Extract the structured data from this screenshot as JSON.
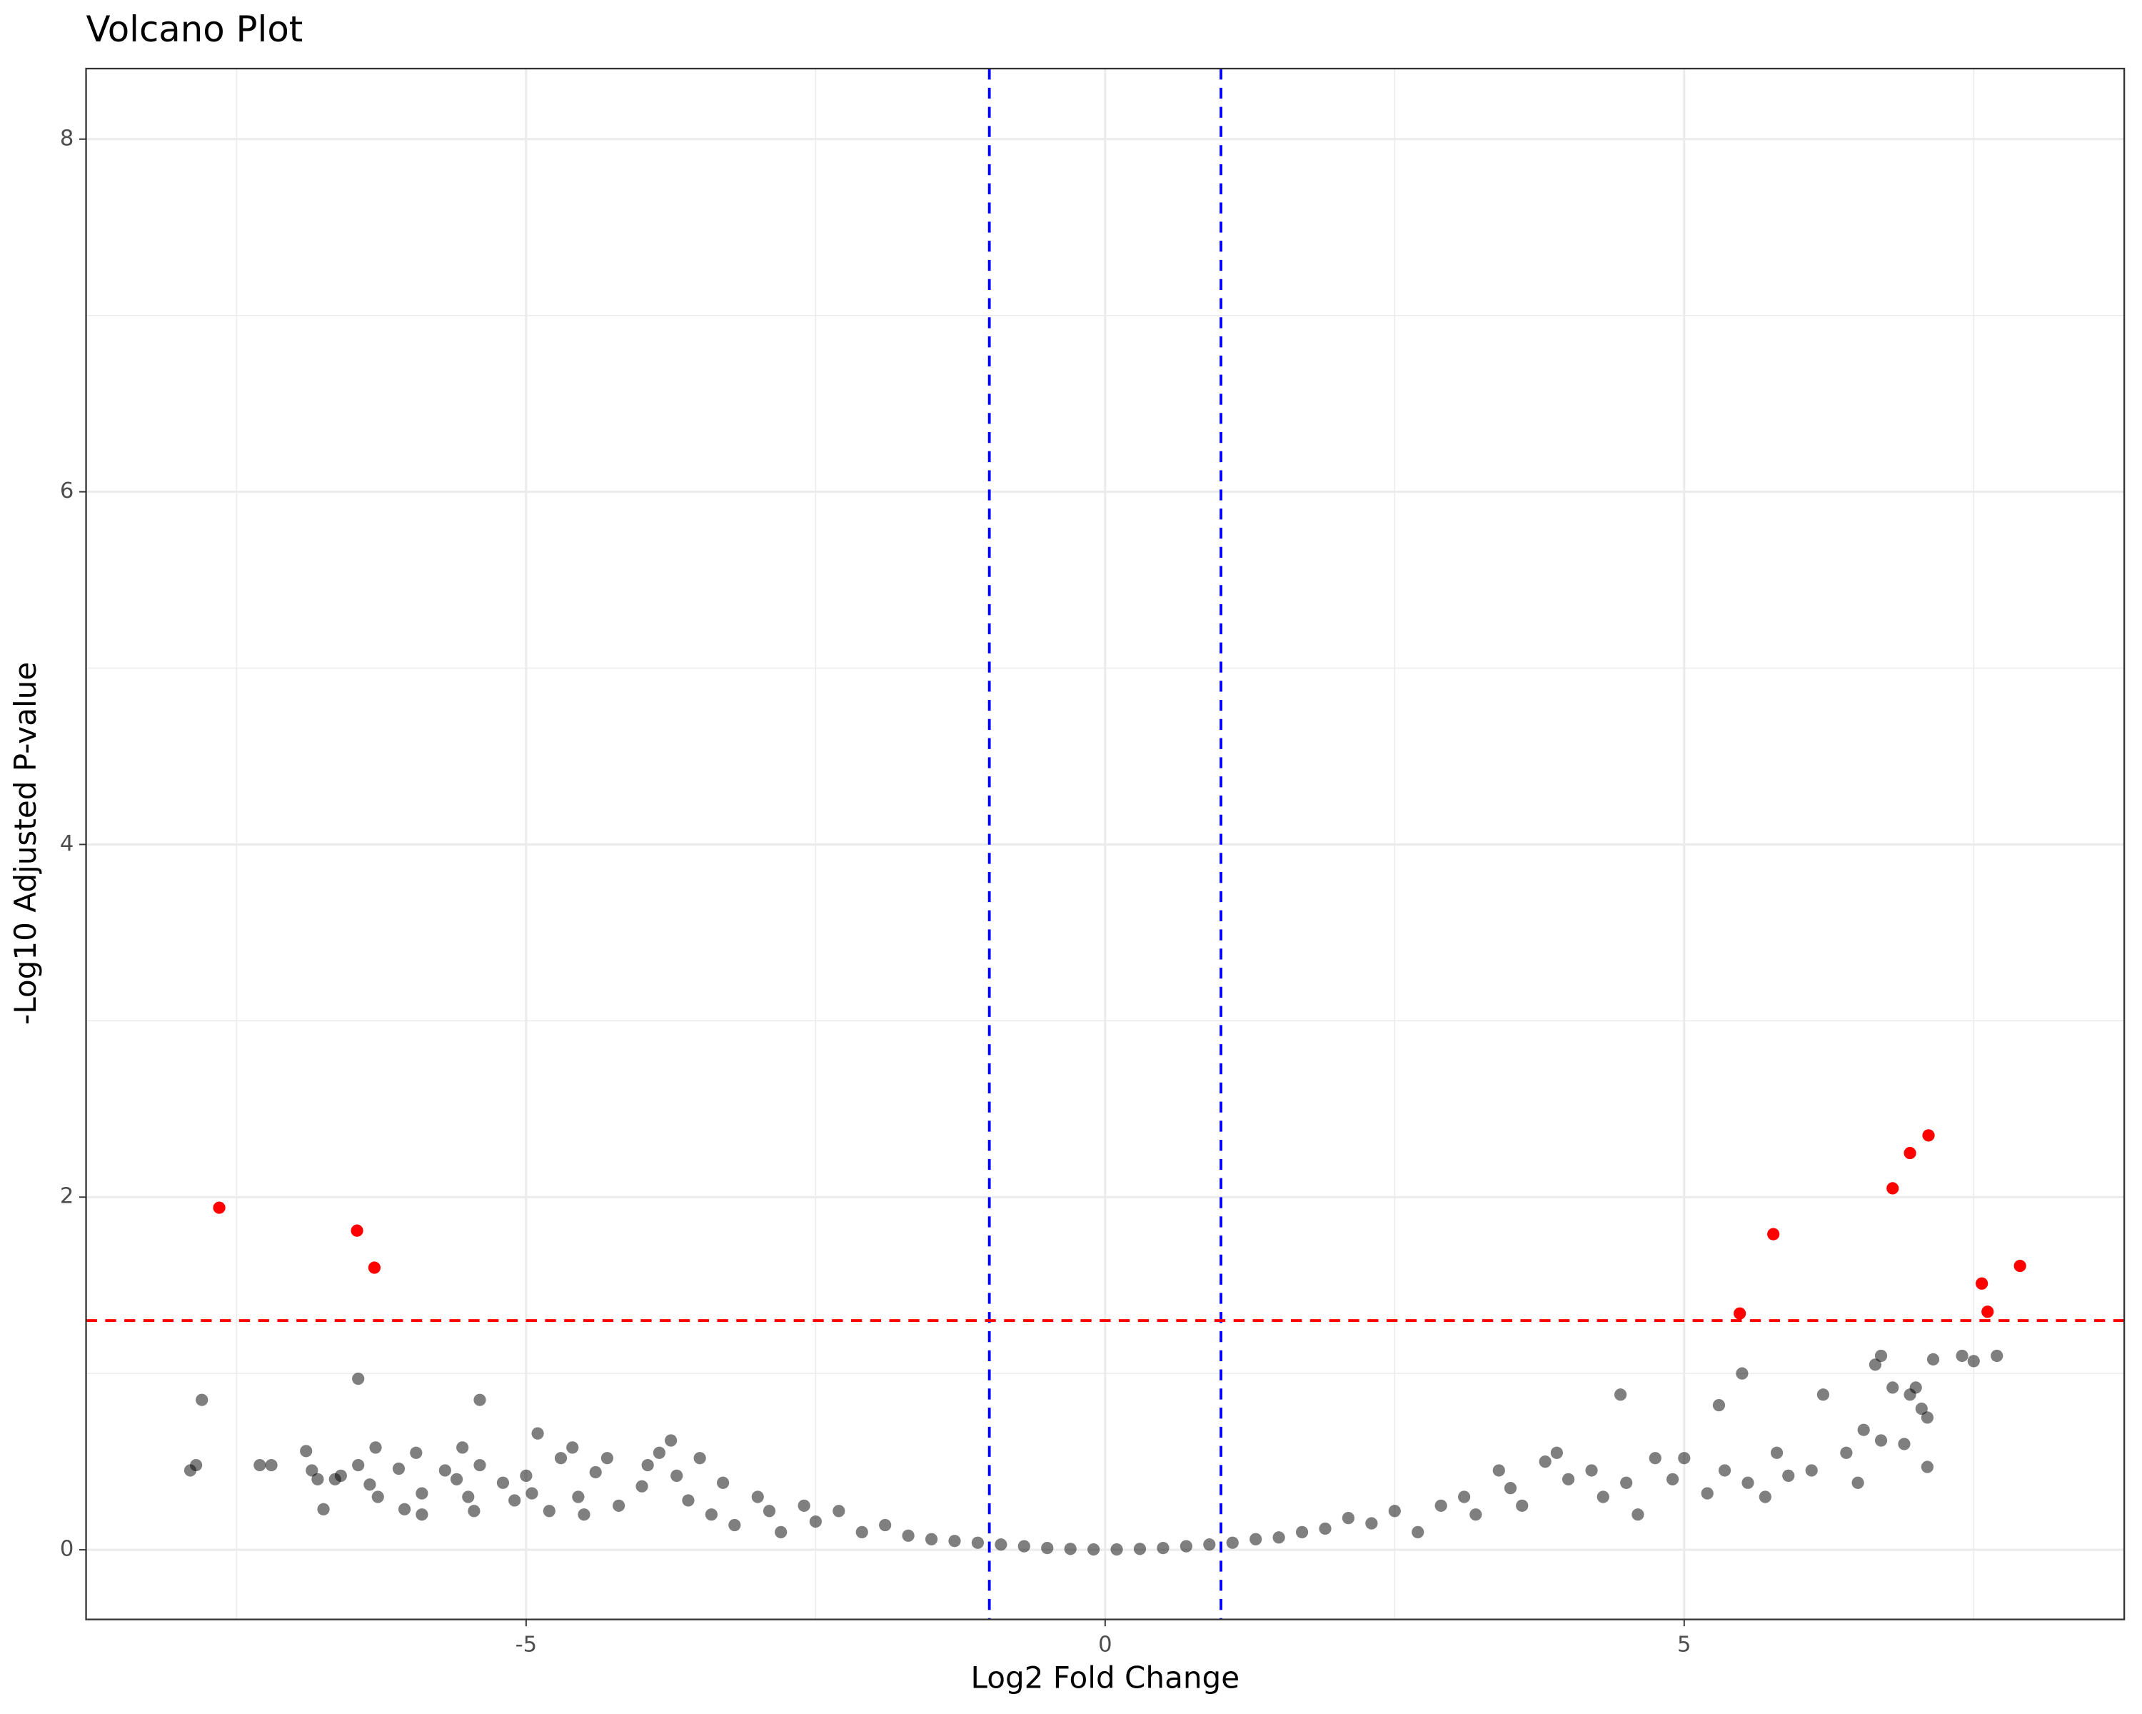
{
  "chart_data": {
    "type": "scatter",
    "title": "Volcano Plot",
    "x_label": "Log2 Fold Change",
    "y_label": "-Log10 Adjusted P-value",
    "xlim": [
      -8.8,
      8.8
    ],
    "ylim": [
      -0.395,
      8.4
    ],
    "xticks": [
      -5,
      0,
      5
    ],
    "yticks": [
      0,
      2,
      4,
      6,
      8
    ],
    "x_minor_grid": [
      -7.5,
      -2.5,
      2.5,
      7.5
    ],
    "y_minor_grid": [
      1,
      3,
      5,
      7
    ],
    "grid": true,
    "vlines": [
      -1,
      1
    ],
    "vline_color": "#0000ff",
    "hlines": [
      1.3
    ],
    "hline_color": "#ff0000",
    "series": [
      {
        "color": "#000000",
        "alpha": 0.5,
        "x": [
          -7.9,
          -7.85,
          -7.8,
          -7.3,
          -7.2,
          -6.9,
          -6.85,
          -6.8,
          -6.75,
          -6.65,
          -6.6,
          -6.45,
          -6.45,
          -6.35,
          -6.3,
          -6.28,
          -6.1,
          -6.05,
          -5.95,
          -5.9,
          -5.9,
          -5.7,
          -5.6,
          -5.55,
          -5.5,
          -5.45,
          -5.4,
          -5.4,
          -5.2,
          -5.1,
          -5.0,
          -4.95,
          -4.9,
          -4.8,
          -4.7,
          -4.6,
          -4.55,
          -4.5,
          -4.4,
          -4.3,
          -4.2,
          -4.0,
          -3.95,
          -3.85,
          -3.75,
          -3.7,
          -3.6,
          -3.5,
          -3.4,
          -3.3,
          -3.2,
          -3.0,
          -2.9,
          -2.8,
          -2.6,
          -2.5,
          -2.3,
          -2.1,
          -1.9,
          -1.7,
          -1.5,
          -1.3,
          -1.1,
          -0.9,
          -0.7,
          -0.5,
          -0.3,
          -0.1,
          0.1,
          0.3,
          0.5,
          0.7,
          0.9,
          1.1,
          1.3,
          1.5,
          1.7,
          1.9,
          2.1,
          2.3,
          2.5,
          2.7,
          2.9,
          3.1,
          3.2,
          3.4,
          3.5,
          3.6,
          3.8,
          3.9,
          4.0,
          4.2,
          4.3,
          4.45,
          4.5,
          4.6,
          4.75,
          4.9,
          5.0,
          5.2,
          5.35,
          5.3,
          5.5,
          5.55,
          5.7,
          5.8,
          5.9,
          6.1,
          6.2,
          6.4,
          6.5,
          6.55,
          6.65,
          6.7,
          6.7,
          6.8,
          6.9,
          6.95,
          7.0,
          7.05,
          7.1,
          7.1,
          7.15,
          7.4,
          7.5,
          7.7
        ],
        "values": [
          0.45,
          0.48,
          0.85,
          0.48,
          0.48,
          0.56,
          0.45,
          0.4,
          0.23,
          0.4,
          0.42,
          0.97,
          0.48,
          0.37,
          0.58,
          0.3,
          0.46,
          0.23,
          0.55,
          0.32,
          0.2,
          0.45,
          0.4,
          0.58,
          0.3,
          0.22,
          0.85,
          0.48,
          0.38,
          0.28,
          0.42,
          0.32,
          0.66,
          0.22,
          0.52,
          0.58,
          0.3,
          0.2,
          0.44,
          0.52,
          0.25,
          0.36,
          0.48,
          0.55,
          0.62,
          0.42,
          0.28,
          0.52,
          0.2,
          0.38,
          0.14,
          0.3,
          0.22,
          0.1,
          0.25,
          0.16,
          0.22,
          0.1,
          0.14,
          0.08,
          0.06,
          0.05,
          0.04,
          0.03,
          0.02,
          0.01,
          0.005,
          0.002,
          0.002,
          0.005,
          0.01,
          0.02,
          0.03,
          0.04,
          0.06,
          0.07,
          0.1,
          0.12,
          0.18,
          0.15,
          0.22,
          0.1,
          0.25,
          0.3,
          0.2,
          0.45,
          0.35,
          0.25,
          0.5,
          0.55,
          0.4,
          0.45,
          0.3,
          0.88,
          0.38,
          0.2,
          0.52,
          0.4,
          0.52,
          0.32,
          0.45,
          0.82,
          1.0,
          0.38,
          0.3,
          0.55,
          0.42,
          0.45,
          0.88,
          0.55,
          0.38,
          0.68,
          1.05,
          1.1,
          0.62,
          0.92,
          0.6,
          0.88,
          0.92,
          0.8,
          0.75,
          0.47,
          1.08,
          1.1,
          1.07,
          1.1
        ]
      },
      {
        "color": "#ff0000",
        "alpha": 1,
        "x": [
          -7.65,
          -6.46,
          -6.31,
          5.48,
          5.77,
          6.8,
          6.95,
          7.11,
          7.57,
          7.62,
          7.9
        ],
        "values": [
          1.94,
          1.81,
          1.6,
          1.34,
          1.79,
          2.05,
          2.25,
          2.35,
          1.51,
          1.35,
          1.61
        ]
      }
    ]
  }
}
